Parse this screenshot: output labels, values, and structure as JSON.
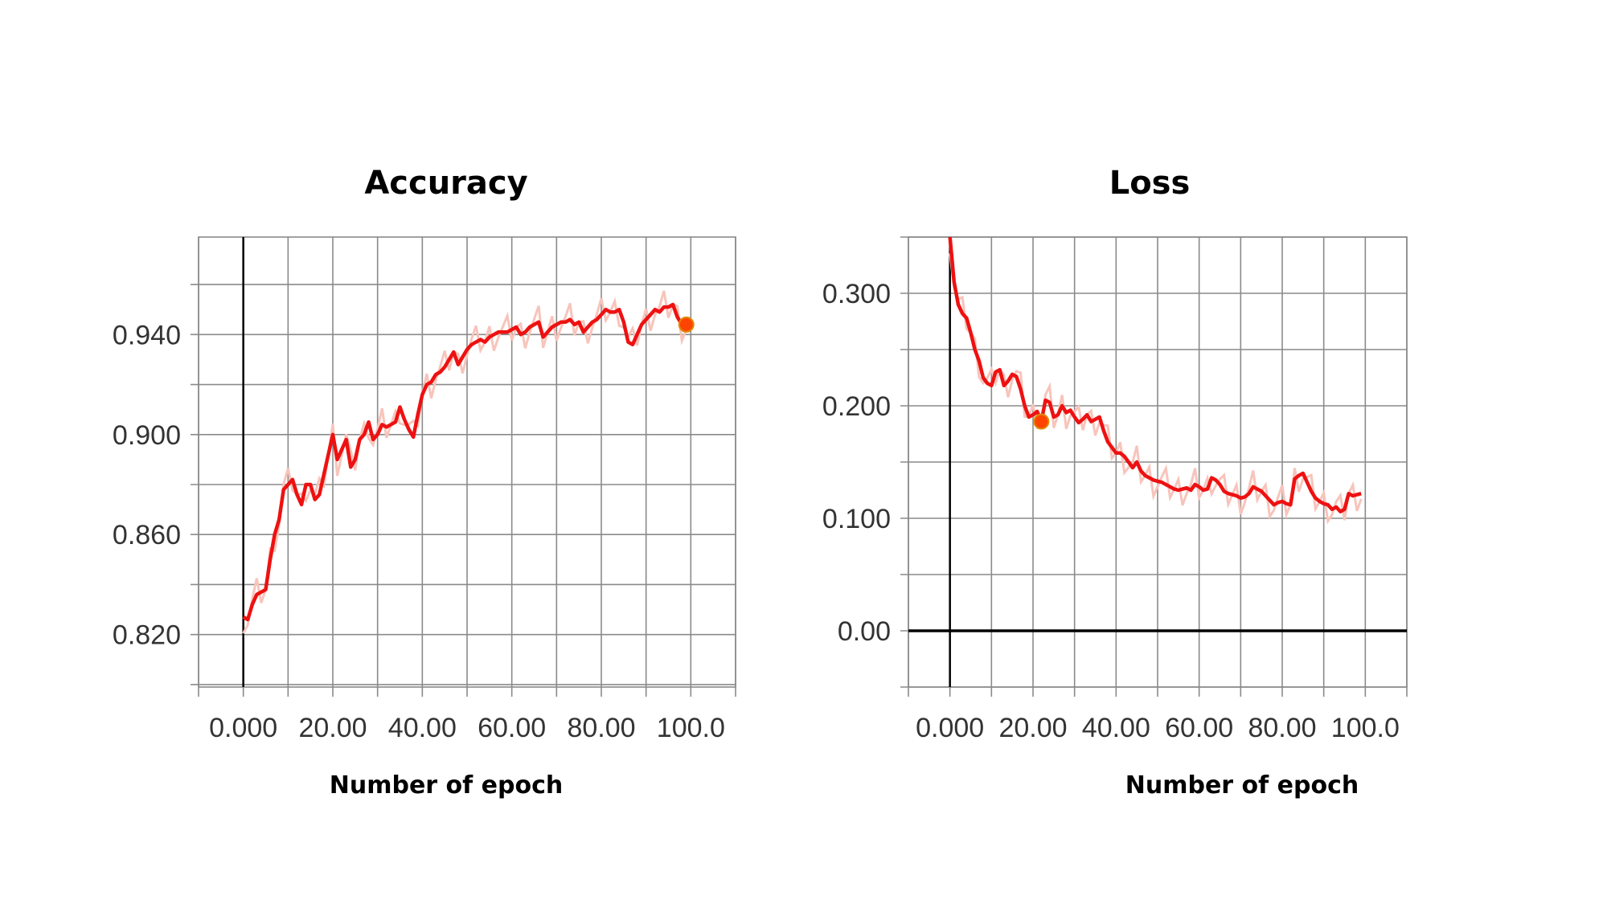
{
  "chart_data": [
    {
      "type": "line",
      "title": "Accuracy",
      "xlabel": "Number of epoch",
      "ylabel": "",
      "xlim": [
        -10,
        110
      ],
      "ylim": [
        0.799,
        0.979
      ],
      "xticks": [
        0,
        20,
        40,
        60,
        80,
        100
      ],
      "xtick_labels": [
        "0.000",
        "20.00",
        "40.00",
        "60.00",
        "80.00",
        "100.0"
      ],
      "yticks": [
        0.82,
        0.86,
        0.9,
        0.94
      ],
      "ytick_labels": [
        "0.820",
        "0.860",
        "0.900",
        "0.940"
      ],
      "grid": true,
      "colors": {
        "line": "#ee1111",
        "raw": "#f7c4bb",
        "marker": "#ff4400"
      },
      "series": [
        {
          "x": [
            0,
            1,
            2,
            3,
            4,
            5,
            6,
            7,
            8,
            9,
            10,
            11,
            12,
            13,
            14,
            15,
            16,
            17,
            18,
            19,
            20,
            21,
            22,
            23,
            24,
            25,
            26,
            27,
            28,
            29,
            30,
            31,
            32,
            33,
            34,
            35,
            36,
            37,
            38,
            39,
            40,
            41,
            42,
            43,
            44,
            45,
            46,
            47,
            48,
            49,
            50,
            51,
            52,
            53,
            54,
            55,
            56,
            57,
            58,
            59,
            60,
            61,
            62,
            63,
            64,
            65,
            66,
            67,
            68,
            69,
            70,
            71,
            72,
            73,
            74,
            75,
            76,
            77,
            78,
            79,
            80,
            81,
            82,
            83,
            84,
            85,
            86,
            87,
            88,
            89,
            90,
            91,
            92,
            93,
            94,
            95,
            96,
            97,
            98,
            99
          ],
          "y": [
            0.827,
            0.826,
            0.832,
            0.836,
            0.837,
            0.838,
            0.85,
            0.86,
            0.866,
            0.878,
            0.88,
            0.882,
            0.876,
            0.872,
            0.88,
            0.88,
            0.874,
            0.876,
            0.884,
            0.892,
            0.9,
            0.89,
            0.894,
            0.898,
            0.887,
            0.89,
            0.898,
            0.9,
            0.905,
            0.898,
            0.9,
            0.904,
            0.903,
            0.904,
            0.905,
            0.911,
            0.906,
            0.902,
            0.899,
            0.908,
            0.916,
            0.92,
            0.921,
            0.924,
            0.925,
            0.927,
            0.93,
            0.933,
            0.928,
            0.931,
            0.934,
            0.936,
            0.937,
            0.938,
            0.937,
            0.939,
            0.94,
            0.941,
            0.941,
            0.941,
            0.942,
            0.943,
            0.94,
            0.941,
            0.943,
            0.944,
            0.945,
            0.939,
            0.941,
            0.943,
            0.944,
            0.945,
            0.945,
            0.946,
            0.944,
            0.945,
            0.941,
            0.943,
            0.945,
            0.946,
            0.948,
            0.95,
            0.949,
            0.949,
            0.95,
            0.945,
            0.937,
            0.936,
            0.94,
            0.944,
            0.946,
            0.948,
            0.95,
            0.949,
            0.951,
            0.951,
            0.952,
            0.947,
            0.944,
            0.944
          ]
        }
      ]
    },
    {
      "type": "line",
      "title": "Loss",
      "xlabel": "Number of epoch",
      "ylabel": "",
      "xlim": [
        -10,
        110
      ],
      "ylim": [
        -0.05,
        0.35
      ],
      "xticks": [
        0,
        20,
        40,
        60,
        80,
        100
      ],
      "xtick_labels": [
        "0.000",
        "20.00",
        "40.00",
        "60.00",
        "80.00",
        "100.0"
      ],
      "yticks": [
        0.0,
        0.1,
        0.2,
        0.3
      ],
      "ytick_labels": [
        "0.00",
        "0.100",
        "0.200",
        "0.300"
      ],
      "grid": true,
      "colors": {
        "line": "#ee1111",
        "raw": "#f7c4bb",
        "marker": "#ff4400"
      },
      "series": [
        {
          "x": [
            0,
            1,
            2,
            3,
            4,
            5,
            6,
            7,
            8,
            9,
            10,
            11,
            12,
            13,
            14,
            15,
            16,
            17,
            18,
            19,
            20,
            21,
            22,
            23,
            24,
            25,
            26,
            27,
            28,
            29,
            30,
            31,
            32,
            33,
            34,
            35,
            36,
            37,
            38,
            39,
            40,
            41,
            42,
            43,
            44,
            45,
            46,
            47,
            48,
            49,
            50,
            51,
            52,
            53,
            54,
            55,
            56,
            57,
            58,
            59,
            60,
            61,
            62,
            63,
            64,
            65,
            66,
            67,
            68,
            69,
            70,
            71,
            72,
            73,
            74,
            75,
            76,
            77,
            78,
            79,
            80,
            81,
            82,
            83,
            84,
            85,
            86,
            87,
            88,
            89,
            90,
            91,
            92,
            93,
            94,
            95,
            96,
            97,
            98,
            99
          ],
          "y": [
            0.35,
            0.31,
            0.29,
            0.282,
            0.278,
            0.265,
            0.25,
            0.24,
            0.225,
            0.22,
            0.218,
            0.23,
            0.232,
            0.218,
            0.222,
            0.228,
            0.226,
            0.215,
            0.2,
            0.19,
            0.192,
            0.195,
            0.186,
            0.205,
            0.203,
            0.19,
            0.192,
            0.2,
            0.194,
            0.196,
            0.19,
            0.185,
            0.188,
            0.192,
            0.186,
            0.188,
            0.19,
            0.178,
            0.168,
            0.163,
            0.158,
            0.158,
            0.155,
            0.15,
            0.145,
            0.15,
            0.142,
            0.138,
            0.136,
            0.134,
            0.133,
            0.132,
            0.13,
            0.128,
            0.126,
            0.125,
            0.126,
            0.127,
            0.125,
            0.13,
            0.128,
            0.125,
            0.126,
            0.136,
            0.134,
            0.13,
            0.124,
            0.122,
            0.121,
            0.12,
            0.118,
            0.119,
            0.122,
            0.128,
            0.126,
            0.124,
            0.12,
            0.116,
            0.112,
            0.114,
            0.115,
            0.113,
            0.112,
            0.135,
            0.138,
            0.14,
            0.132,
            0.124,
            0.118,
            0.115,
            0.113,
            0.112,
            0.108,
            0.11,
            0.106,
            0.108,
            0.122,
            0.12,
            0.121,
            0.122
          ]
        }
      ]
    }
  ]
}
